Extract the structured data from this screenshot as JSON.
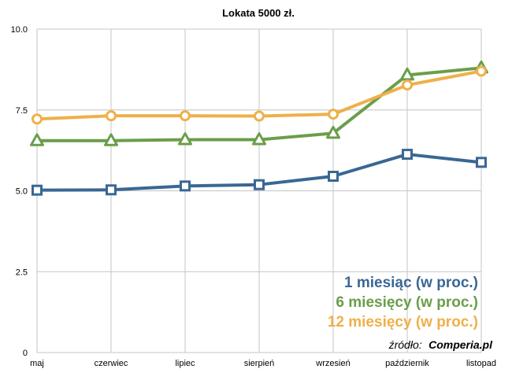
{
  "chart_data": {
    "type": "line",
    "title": "Lokata 5000 zł.",
    "categories": [
      "maj",
      "czerwiec",
      "lipiec",
      "sierpień",
      "wrzesień",
      "październik",
      "listopad"
    ],
    "yticks": [
      "0",
      "2.5",
      "5.0",
      "7.5",
      "10.0"
    ],
    "ylim": [
      0,
      10
    ],
    "grid": true,
    "legend_position": "bottom-right",
    "series": [
      {
        "name": "1 miesiąc (w proc.)",
        "color": "#3a6794",
        "marker": "square",
        "values": [
          5.02,
          5.03,
          5.15,
          5.19,
          5.45,
          6.13,
          5.88
        ]
      },
      {
        "name": "6 miesięcy (w proc.)",
        "color": "#6a9e4a",
        "marker": "triangle",
        "values": [
          6.55,
          6.55,
          6.58,
          6.58,
          6.78,
          8.58,
          8.8
        ]
      },
      {
        "name": "12 miesięcy (w proc.)",
        "color": "#efb04a",
        "marker": "circle",
        "values": [
          7.22,
          7.32,
          7.32,
          7.31,
          7.37,
          8.27,
          8.7
        ]
      }
    ],
    "source": {
      "label": "źródło:",
      "value": "Comperia.pl"
    }
  }
}
